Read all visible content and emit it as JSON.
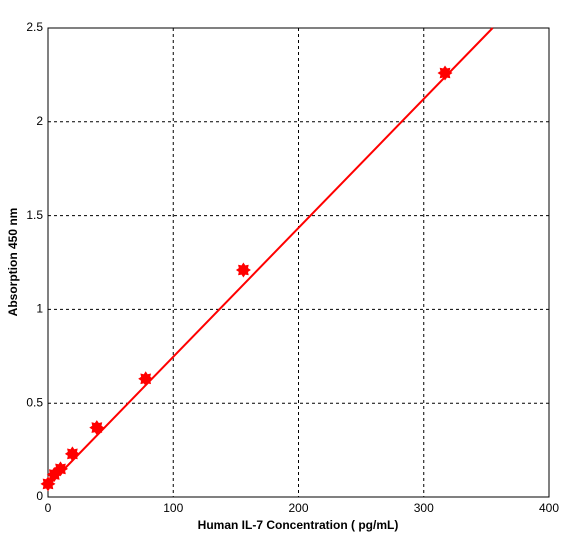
{
  "chart_data": {
    "type": "scatter",
    "xlabel": "Human IL-7 Concentration ( pg/mL)",
    "ylabel": "Absorption 450 nm",
    "xlim": [
      0,
      400
    ],
    "ylim": [
      0,
      2.5
    ],
    "xticks": [
      0,
      100,
      200,
      300,
      400
    ],
    "yticks": [
      0,
      0.5,
      1,
      1.5,
      2,
      2.5
    ],
    "grid": true,
    "series": [
      {
        "type": "scatter",
        "color": "#ff0000",
        "x": [
          0,
          5,
          10,
          19.5,
          39,
          78,
          156,
          317
        ],
        "values": [
          0.07,
          0.12,
          0.15,
          0.23,
          0.37,
          0.63,
          1.21,
          2.26
        ]
      },
      {
        "type": "line",
        "color": "#ff0000",
        "x": [
          0,
          355
        ],
        "values": [
          0.06,
          2.5
        ]
      }
    ]
  }
}
